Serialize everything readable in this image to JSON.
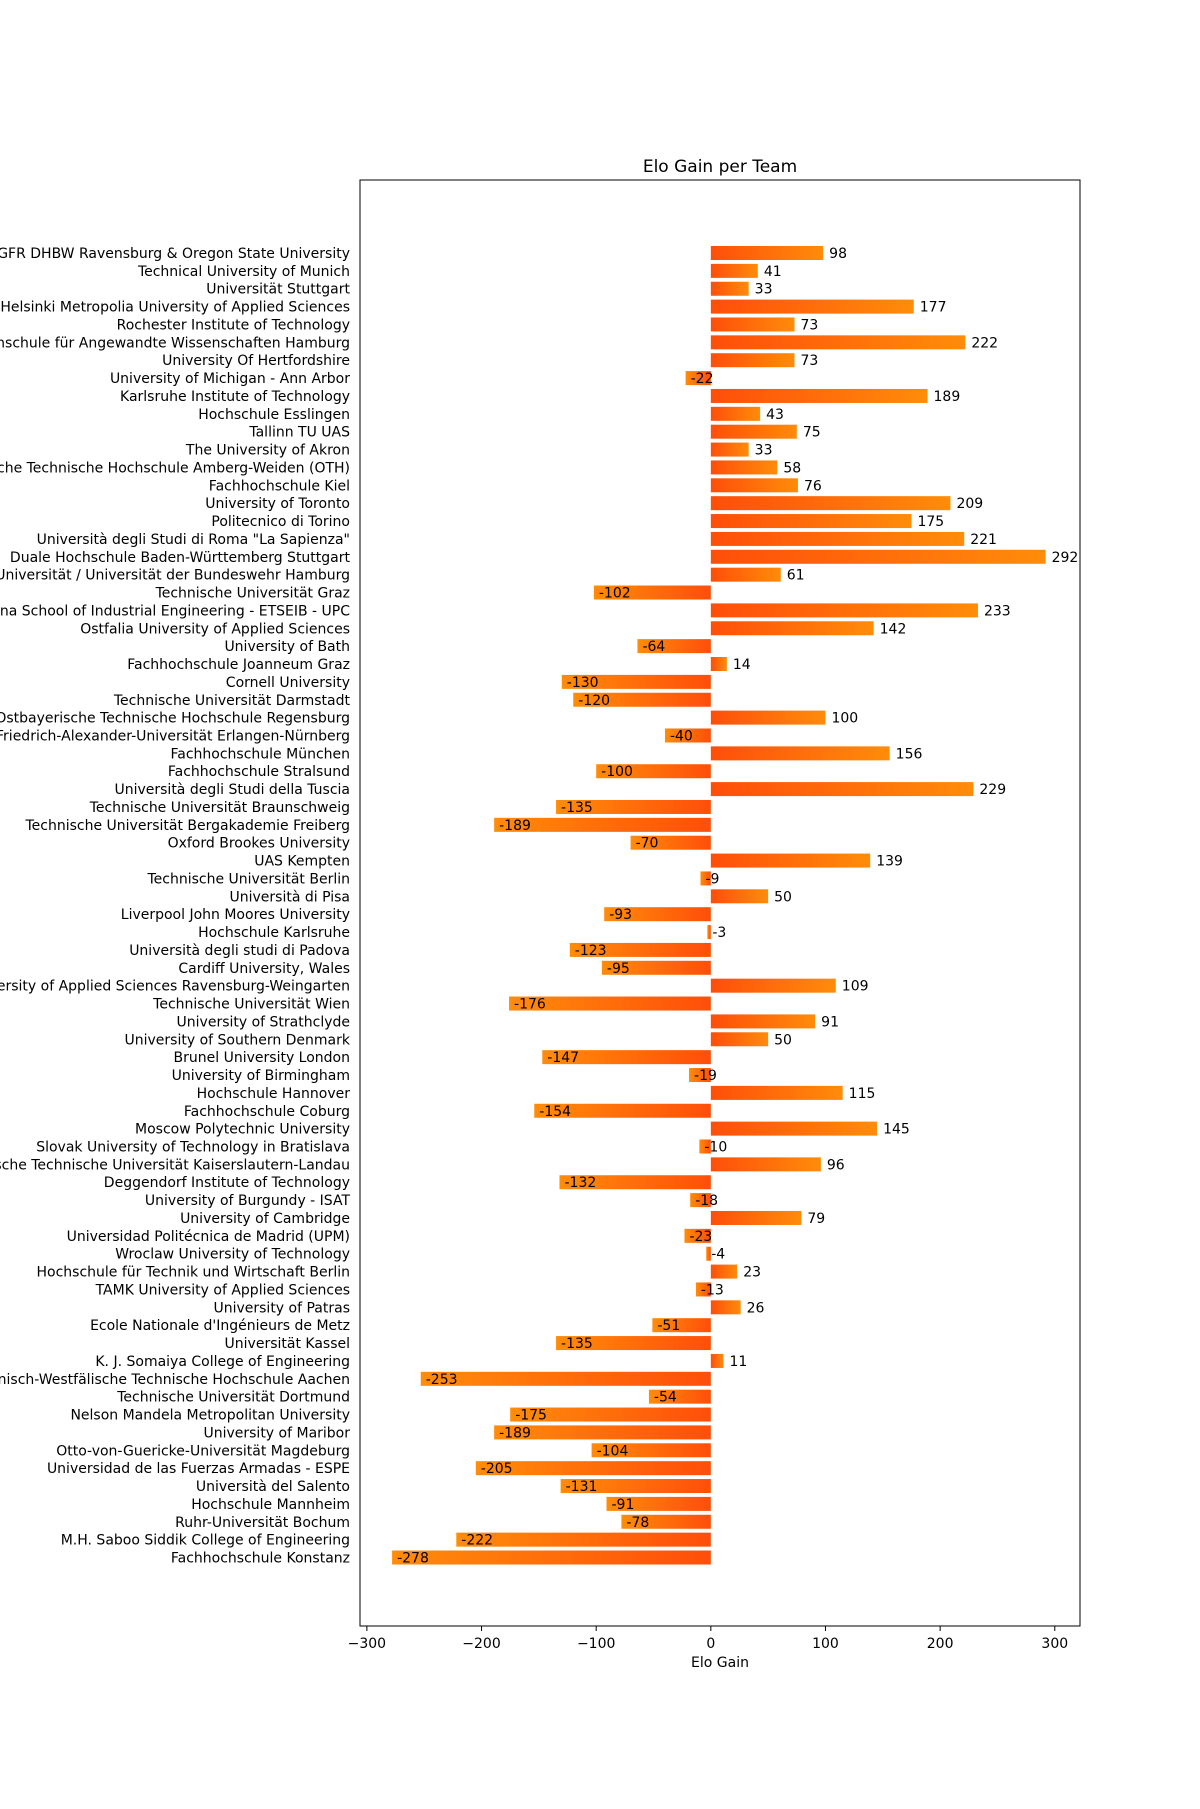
{
  "chart_data": {
    "type": "bar",
    "orientation": "horizontal",
    "title": "Elo Gain per Team",
    "xlabel": "Elo Gain",
    "ylabel": "",
    "xlim": [
      -306,
      322
    ],
    "xticks": [
      -300,
      -200,
      -100,
      0,
      100,
      200,
      300
    ],
    "xtick_labels": [
      "−300",
      "−200",
      "−100",
      "0",
      "100",
      "200",
      "300"
    ],
    "grid": false,
    "bar_colors": {
      "light": "#ff8c0a",
      "dark": "#ff4e0a"
    },
    "categories": [
      "GFR DHBW Ravensburg & Oregon State University",
      "Technical University of Munich",
      "Universität Stuttgart",
      "Helsinki Metropolia University of Applied Sciences",
      "Rochester Institute of Technology",
      "Hochschule für Angewandte Wissenschaften Hamburg",
      "University Of Hertfordshire",
      "University of Michigan - Ann Arbor",
      "Karlsruhe Institute of Technology",
      "Hochschule Esslingen",
      "Tallinn TU UAS",
      "The University of Akron",
      "Ostbayerische Technische Hochschule Amberg-Weiden (OTH)",
      "Fachhochschule Kiel",
      "University of Toronto",
      "Politecnico di Torino",
      "Università degli Studi di Roma \"La Sapienza\"",
      "Duale Hochschule Baden-Württemberg Stuttgart",
      "Helmut-Schmidt-Universität / Universität der Bundeswehr Hamburg",
      "Technische Universität Graz",
      "Barcelona School of Industrial Engineering - ETSEIB - UPC",
      "Ostfalia University of Applied Sciences",
      "University of Bath",
      "Fachhochschule Joanneum Graz",
      "Cornell University",
      "Technische Universität Darmstadt",
      "Ostbayerische Technische Hochschule Regensburg",
      "Friedrich-Alexander-Universität Erlangen-Nürnberg",
      "Fachhochschule München",
      "Fachhochschule Stralsund",
      "Università degli Studi della Tuscia",
      "Technische Universität Braunschweig",
      "Technische Universität Bergakademie Freiberg",
      "Oxford Brookes University",
      "UAS Kempten",
      "Technische Universität Berlin",
      "Università di Pisa",
      "Liverpool John Moores University",
      "Hochschule Karlsruhe",
      "Università degli studi di Padova",
      "Cardiff University, Wales",
      "University of Applied Sciences Ravensburg-Weingarten",
      "Technische Universität Wien",
      "University of Strathclyde",
      "University of Southern Denmark",
      "Brunel University London",
      "University of Birmingham",
      "Hochschule Hannover",
      "Fachhochschule Coburg",
      "Moscow Polytechnic University",
      "Slovak University of Technology in Bratislava",
      "Rheinland-Pfälzische Technische Universität Kaiserslautern-Landau",
      "Deggendorf Institute of Technology",
      "University of Burgundy - ISAT",
      "University of Cambridge",
      "Universidad Politécnica de Madrid (UPM)",
      "Wroclaw University of Technology",
      "Hochschule für Technik und Wirtschaft Berlin",
      "TAMK University of Applied Sciences",
      "University of Patras",
      "Ecole Nationale d'Ingénieurs de Metz",
      "Universität Kassel",
      "K. J. Somaiya College of Engineering",
      "Rheinisch-Westfälische Technische Hochschule Aachen",
      "Technische Universität Dortmund",
      "Nelson Mandela Metropolitan University",
      "University of Maribor",
      "Otto-von-Guericke-Universität Magdeburg",
      "Universidad de las Fuerzas Armadas - ESPE",
      "Università del Salento",
      "Hochschule Mannheim",
      "Ruhr-Universität Bochum",
      "M.H. Saboo Siddik College of Engineering",
      "Fachhochschule Konstanz"
    ],
    "values": [
      98,
      41,
      33,
      177,
      73,
      222,
      73,
      -22,
      189,
      43,
      75,
      33,
      58,
      76,
      209,
      175,
      221,
      292,
      61,
      -102,
      233,
      142,
      -64,
      14,
      -130,
      -120,
      100,
      -40,
      156,
      -100,
      229,
      -135,
      -189,
      -70,
      139,
      -9,
      50,
      -93,
      -3,
      -123,
      -95,
      109,
      -176,
      91,
      50,
      -147,
      -19,
      115,
      -154,
      145,
      -10,
      96,
      -132,
      -18,
      79,
      -23,
      -4,
      23,
      -13,
      26,
      -51,
      -135,
      11,
      -253,
      -54,
      -175,
      -189,
      -104,
      -205,
      -131,
      -91,
      -78,
      -222,
      -278
    ]
  }
}
